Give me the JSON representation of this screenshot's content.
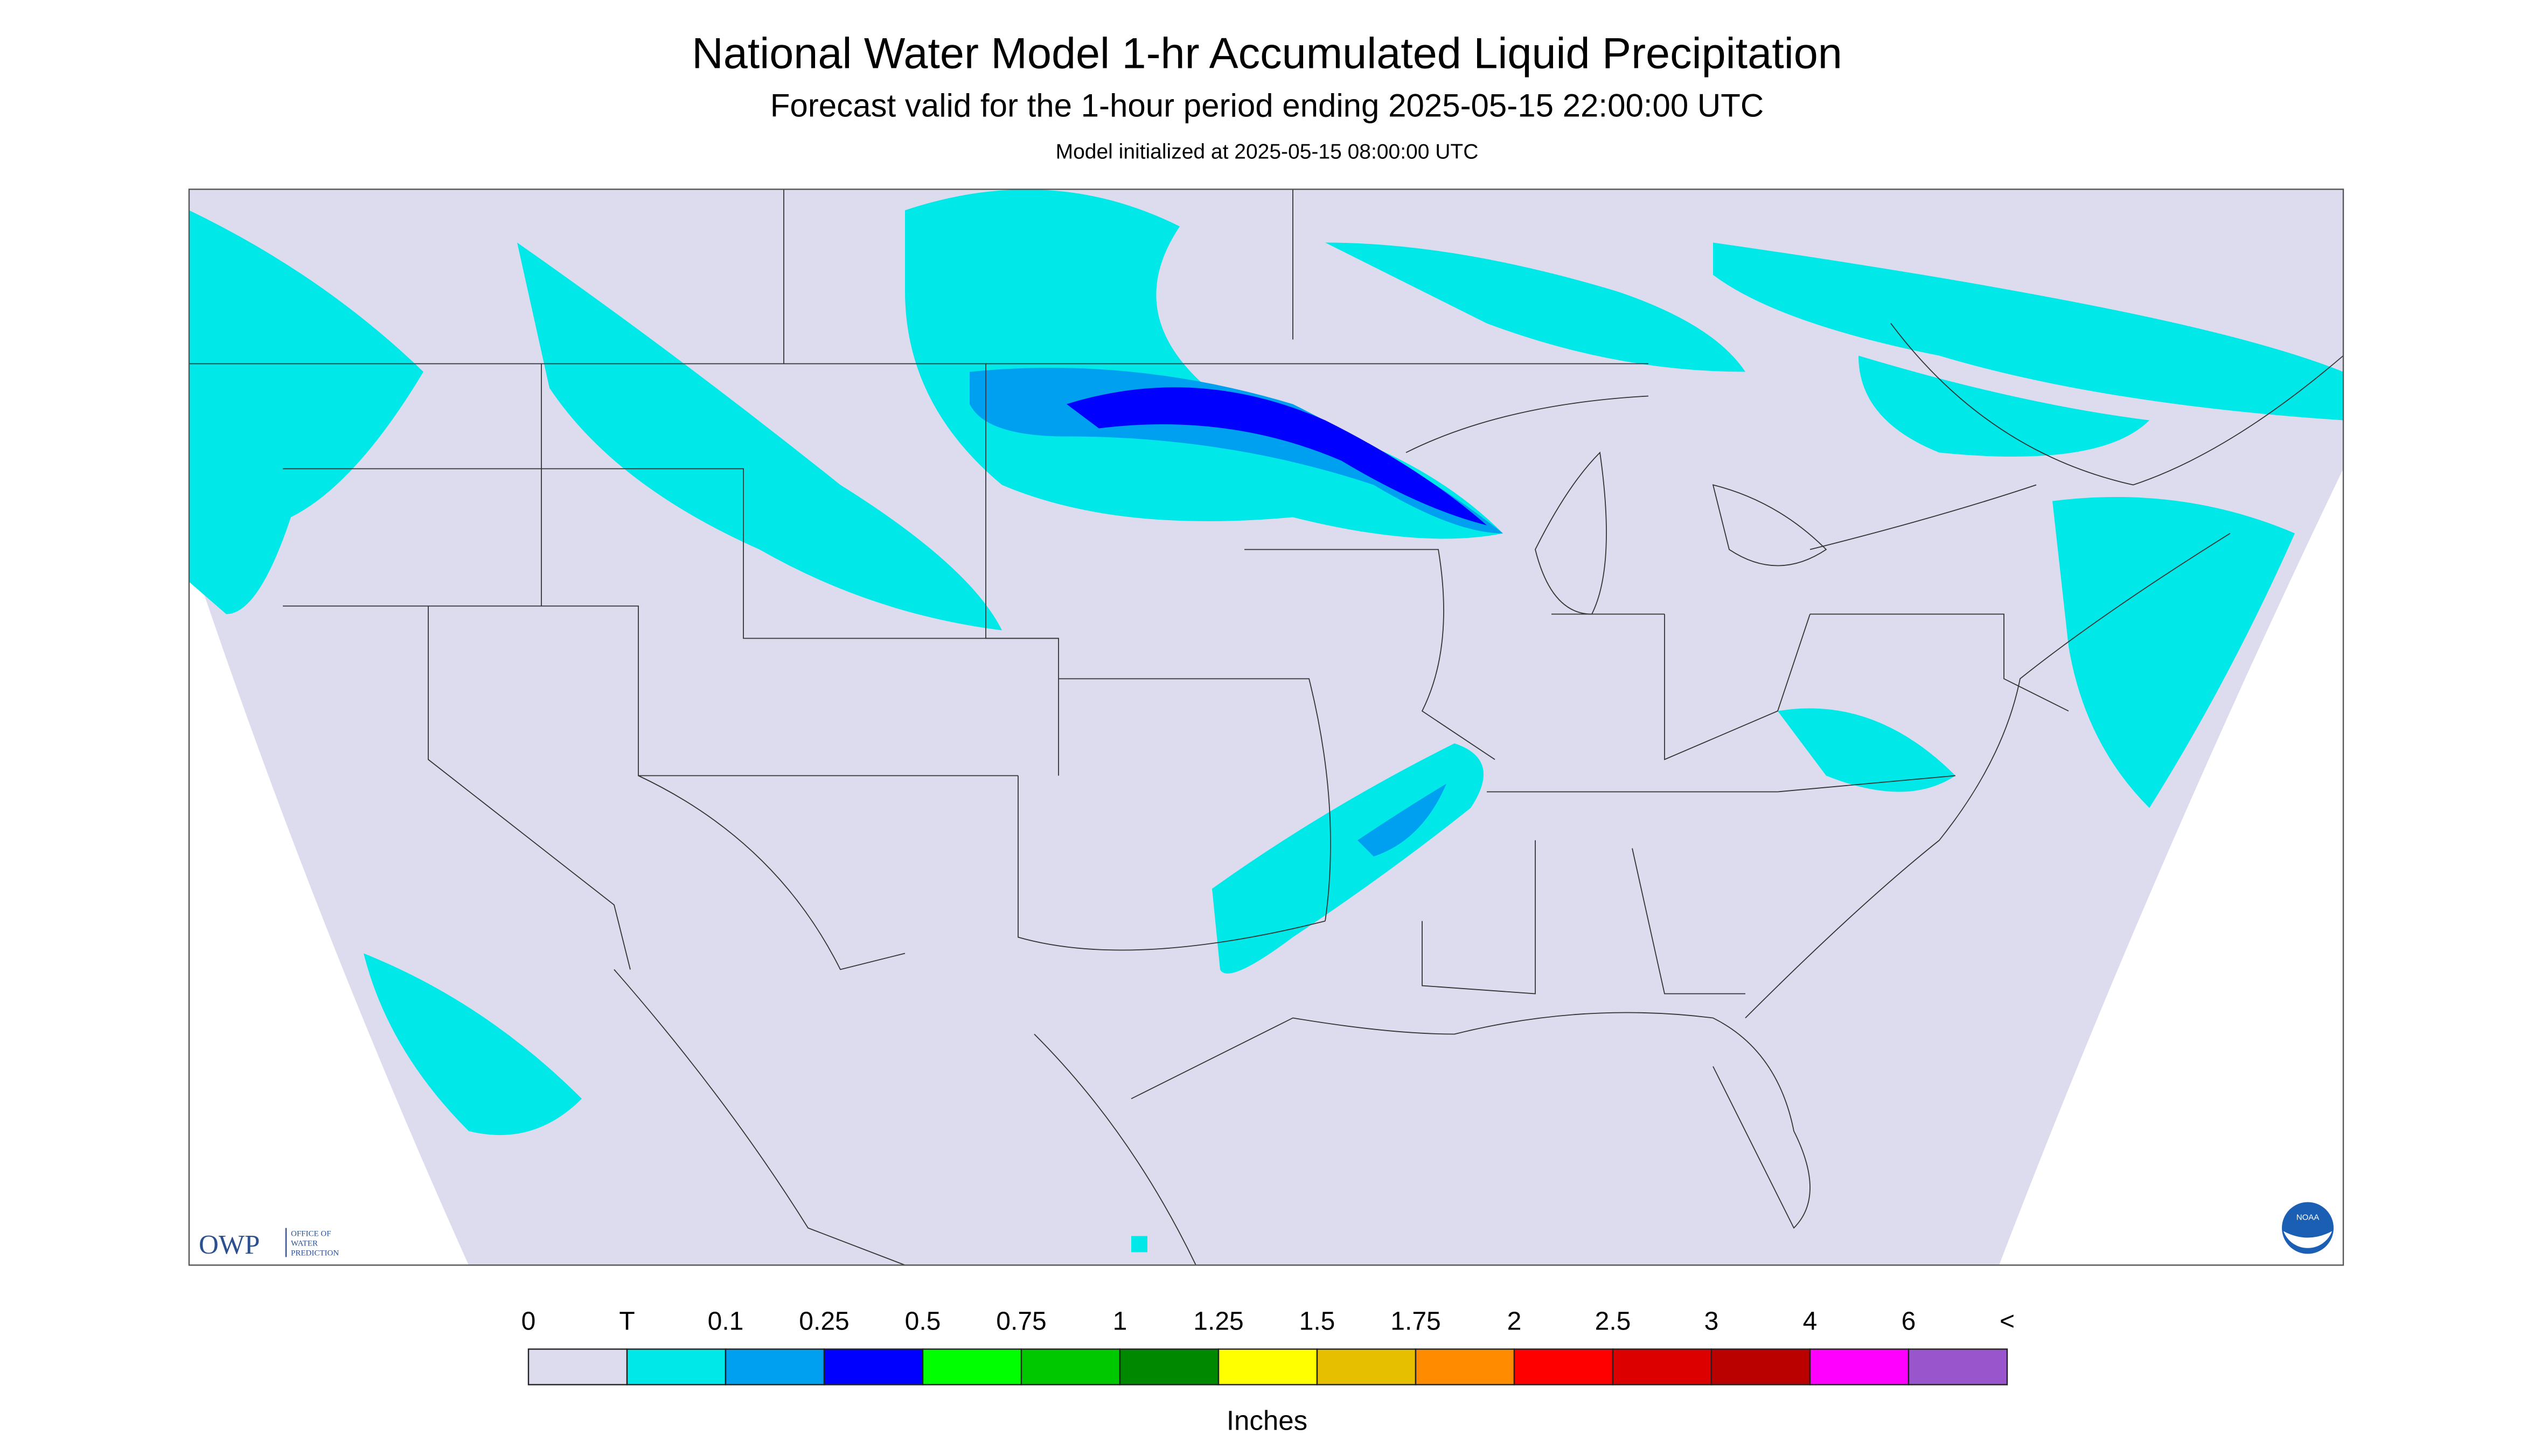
{
  "header": {
    "title": "National Water Model 1-hr Accumulated Liquid Precipitation",
    "subtitle": "Forecast valid for the 1-hour period ending 2025-05-15 22:00:00 UTC",
    "init": "Model initialized at 2025-05-15 08:00:00 UTC"
  },
  "logo": {
    "owp": "OWP",
    "owp_full": [
      "OFFICE OF",
      "WATER",
      "PREDICTION"
    ],
    "noaa": "NOAA"
  },
  "legend": {
    "labels": [
      "0",
      "T",
      "0.1",
      "0.25",
      "0.5",
      "0.75",
      "1",
      "1.25",
      "1.5",
      "1.75",
      "2",
      "2.5",
      "3",
      "4",
      "6",
      "<"
    ],
    "colors": [
      "#dcdcee",
      "#00e8e8",
      "#00a0f0",
      "#0000ff",
      "#00ff00",
      "#00c800",
      "#008800",
      "#ffff00",
      "#e6c000",
      "#ff8c00",
      "#ff0000",
      "#dd0000",
      "#bb0000",
      "#ff00ff",
      "#9955cc"
    ],
    "unit": "Inches"
  }
}
